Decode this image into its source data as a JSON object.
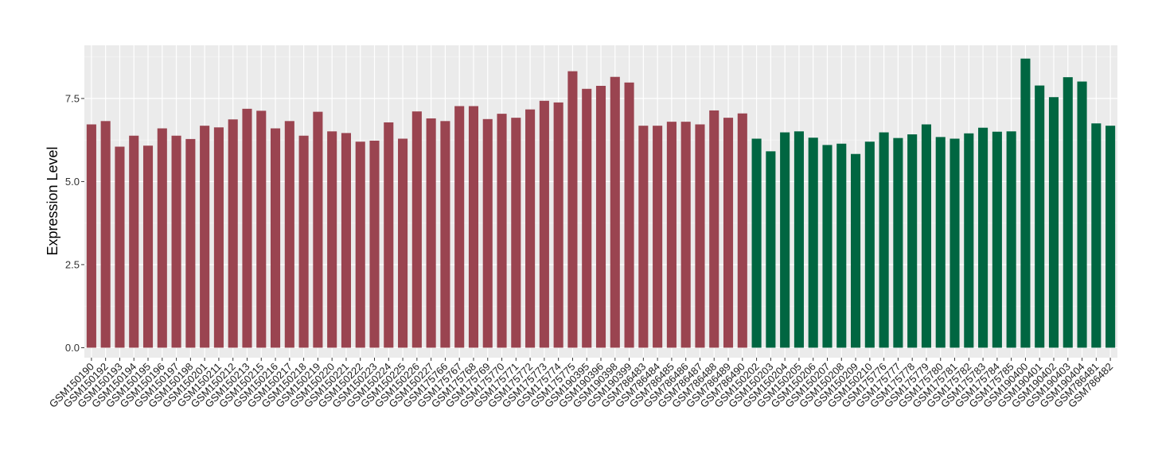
{
  "chart_data": {
    "type": "bar",
    "ylabel": "Expression Level",
    "xlabel": "",
    "ylim": [
      -0.3,
      9.1
    ],
    "yticks": [
      0.0,
      2.5,
      5.0,
      7.5
    ],
    "ytick_labels": [
      "0.0",
      "2.5",
      "5.0",
      "7.5"
    ],
    "grid": true,
    "panel_color": "#ebebeb",
    "categories": [
      "GSM150190",
      "GSM150192",
      "GSM150193",
      "GSM150194",
      "GSM150195",
      "GSM150196",
      "GSM150197",
      "GSM150198",
      "GSM150201",
      "GSM150211",
      "GSM150212",
      "GSM150213",
      "GSM150215",
      "GSM150216",
      "GSM150217",
      "GSM150218",
      "GSM150219",
      "GSM150220",
      "GSM150221",
      "GSM150222",
      "GSM150223",
      "GSM150224",
      "GSM150225",
      "GSM150226",
      "GSM150227",
      "GSM175766",
      "GSM175767",
      "GSM175768",
      "GSM175769",
      "GSM175770",
      "GSM175771",
      "GSM175772",
      "GSM175773",
      "GSM175774",
      "GSM175775",
      "GSM190395",
      "GSM190396",
      "GSM190398",
      "GSM190399",
      "GSM786483",
      "GSM786484",
      "GSM786485",
      "GSM786486",
      "GSM786487",
      "GSM786488",
      "GSM786489",
      "GSM786490",
      "GSM150202",
      "GSM150203",
      "GSM150204",
      "GSM150205",
      "GSM150206",
      "GSM150207",
      "GSM150208",
      "GSM150209",
      "GSM150210",
      "GSM175776",
      "GSM175777",
      "GSM175778",
      "GSM175779",
      "GSM175780",
      "GSM175781",
      "GSM175782",
      "GSM175783",
      "GSM175784",
      "GSM175785",
      "GSM190400",
      "GSM190401",
      "GSM190402",
      "GSM190403",
      "GSM190404",
      "GSM786481",
      "GSM786482"
    ],
    "values": [
      6.72,
      6.82,
      6.05,
      6.38,
      6.08,
      6.6,
      6.38,
      6.28,
      6.68,
      6.63,
      6.87,
      7.19,
      7.13,
      6.6,
      6.82,
      6.38,
      7.1,
      6.51,
      6.46,
      6.2,
      6.23,
      6.78,
      6.29,
      7.11,
      6.9,
      6.82,
      7.27,
      7.27,
      6.88,
      7.04,
      6.92,
      7.17,
      7.43,
      7.38,
      8.32,
      7.79,
      7.88,
      8.15,
      7.98,
      6.68,
      6.68,
      6.8,
      6.8,
      6.72,
      7.14,
      6.92,
      7.05,
      6.29,
      5.91,
      6.48,
      6.51,
      6.32,
      6.1,
      6.14,
      5.83,
      6.2,
      6.48,
      6.31,
      6.42,
      6.72,
      6.34,
      6.29,
      6.45,
      6.62,
      6.5,
      6.51,
      8.7,
      7.89,
      7.54,
      8.14,
      8.01,
      6.75,
      6.68
    ],
    "groups": [
      {
        "count": 47,
        "color": "#9a4450"
      },
      {
        "count": 26,
        "color": "#006641"
      }
    ]
  }
}
